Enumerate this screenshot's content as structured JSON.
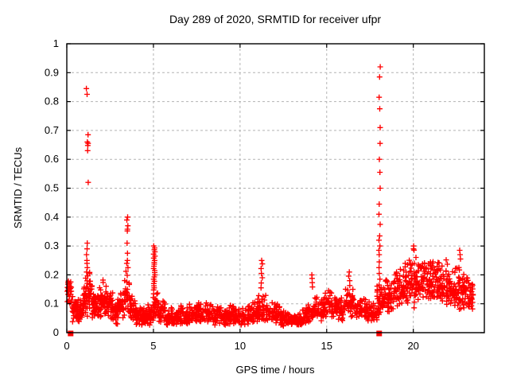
{
  "chart_data": {
    "type": "scatter",
    "title": "Day 289 of 2020, SRMTID for receiver ufpr",
    "xlabel": "GPS time / hours",
    "ylabel": "SRMTID / TECUs",
    "xlim": [
      0,
      24.1
    ],
    "ylim": [
      0,
      1
    ],
    "xticks": [
      0,
      5,
      10,
      15,
      20
    ],
    "yticks": [
      0,
      0.1,
      0.2,
      0.3,
      0.4,
      0.5,
      0.6,
      0.7,
      0.8,
      0.9,
      1
    ],
    "grid": "dashed",
    "legend": "none",
    "marker": "plus",
    "marker_size": 7,
    "marker_color": "#ff0000",
    "grid_color": "#b3b3b3",
    "border_color": "#000000",
    "background": "#ffffff",
    "square_markers": [
      {
        "x": 0.22,
        "y": 0.0
      },
      {
        "x": 18.03,
        "y": 0.0
      }
    ],
    "spike_columns": [
      {
        "x": 1.17,
        "ys": [
          0.845,
          0.825
        ]
      },
      {
        "x": 1.2,
        "ys": [
          0.685,
          0.66,
          0.655,
          0.648,
          0.63,
          0.52
        ]
      },
      {
        "x": 1.17,
        "ys": [
          0.31,
          0.29,
          0.27,
          0.25,
          0.24,
          0.225,
          0.21
        ]
      },
      {
        "x": 3.5,
        "ys": [
          0.4,
          0.39,
          0.37,
          0.358,
          0.352,
          0.31,
          0.275,
          0.25,
          0.24,
          0.225
        ]
      },
      {
        "x": 5.05,
        "ys": [
          0.3,
          0.293,
          0.287,
          0.28,
          0.272,
          0.265,
          0.258,
          0.25,
          0.243,
          0.237,
          0.23,
          0.222,
          0.215,
          0.208,
          0.2,
          0.193,
          0.185,
          0.178,
          0.17,
          0.162,
          0.155,
          0.148
        ]
      },
      {
        "x": 11.25,
        "ys": [
          0.25,
          0.238,
          0.222,
          0.205,
          0.19,
          0.172,
          0.155
        ]
      },
      {
        "x": 14.15,
        "ys": [
          0.2,
          0.188,
          0.173,
          0.158
        ]
      },
      {
        "x": 16.3,
        "ys": [
          0.21,
          0.196,
          0.18,
          0.163
        ]
      },
      {
        "x": 18.05,
        "ys": [
          0.92,
          0.885,
          0.815,
          0.775,
          0.71,
          0.655,
          0.6,
          0.555,
          0.5,
          0.445,
          0.41,
          0.375,
          0.335,
          0.32,
          0.3,
          0.285,
          0.27,
          0.245,
          0.225,
          0.205,
          0.185,
          0.165,
          0.148
        ]
      },
      {
        "x": 20.0,
        "ys": [
          0.3,
          0.29
        ]
      },
      {
        "x": 22.7,
        "ys": [
          0.285,
          0.27,
          0.255
        ]
      }
    ],
    "baseline_bins_format": [
      "x_start",
      "x_end",
      "count",
      "y_min",
      "y_mode",
      "y_max"
    ],
    "baseline_bins": [
      [
        0.02,
        0.3,
        28,
        0.09,
        0.14,
        0.21
      ],
      [
        0.3,
        0.6,
        30,
        0.03,
        0.07,
        0.13
      ],
      [
        0.6,
        0.9,
        34,
        0.03,
        0.06,
        0.12
      ],
      [
        0.9,
        1.15,
        30,
        0.05,
        0.1,
        0.2
      ],
      [
        1.15,
        1.45,
        34,
        0.05,
        0.12,
        0.23
      ],
      [
        1.45,
        1.75,
        30,
        0.04,
        0.08,
        0.15
      ],
      [
        1.75,
        2.05,
        30,
        0.04,
        0.09,
        0.18
      ],
      [
        2.05,
        2.35,
        30,
        0.05,
        0.1,
        0.19
      ],
      [
        2.35,
        2.65,
        30,
        0.04,
        0.08,
        0.15
      ],
      [
        2.65,
        2.95,
        30,
        0.03,
        0.06,
        0.12
      ],
      [
        2.95,
        3.25,
        30,
        0.04,
        0.09,
        0.17
      ],
      [
        3.25,
        3.65,
        36,
        0.04,
        0.11,
        0.22
      ],
      [
        3.65,
        3.95,
        30,
        0.03,
        0.07,
        0.13
      ],
      [
        3.95,
        4.25,
        30,
        0.02,
        0.05,
        0.1
      ],
      [
        4.25,
        4.6,
        34,
        0.02,
        0.045,
        0.09
      ],
      [
        4.6,
        4.9,
        30,
        0.02,
        0.05,
        0.1
      ],
      [
        4.9,
        5.3,
        36,
        0.04,
        0.08,
        0.15
      ],
      [
        5.3,
        5.7,
        34,
        0.03,
        0.06,
        0.11
      ],
      [
        5.7,
        6.5,
        64,
        0.02,
        0.05,
        0.09
      ],
      [
        6.5,
        7.5,
        80,
        0.02,
        0.055,
        0.1
      ],
      [
        7.5,
        8.5,
        80,
        0.03,
        0.06,
        0.11
      ],
      [
        8.5,
        9.5,
        80,
        0.02,
        0.055,
        0.1
      ],
      [
        9.5,
        10.5,
        80,
        0.02,
        0.05,
        0.1
      ],
      [
        10.5,
        11.0,
        40,
        0.03,
        0.06,
        0.11
      ],
      [
        11.0,
        11.6,
        46,
        0.03,
        0.07,
        0.14
      ],
      [
        11.6,
        12.3,
        52,
        0.03,
        0.06,
        0.11
      ],
      [
        12.3,
        13.0,
        54,
        0.02,
        0.045,
        0.08
      ],
      [
        13.0,
        13.6,
        44,
        0.02,
        0.04,
        0.07
      ],
      [
        13.6,
        14.2,
        44,
        0.03,
        0.06,
        0.1
      ],
      [
        14.2,
        14.8,
        44,
        0.04,
        0.08,
        0.13
      ],
      [
        14.8,
        15.3,
        40,
        0.05,
        0.09,
        0.15
      ],
      [
        15.3,
        16.0,
        50,
        0.04,
        0.08,
        0.13
      ],
      [
        16.0,
        16.6,
        46,
        0.05,
        0.1,
        0.17
      ],
      [
        16.6,
        17.3,
        50,
        0.04,
        0.07,
        0.13
      ],
      [
        17.3,
        17.9,
        44,
        0.03,
        0.06,
        0.12
      ],
      [
        17.9,
        18.3,
        40,
        0.05,
        0.1,
        0.18
      ],
      [
        18.3,
        18.9,
        50,
        0.06,
        0.11,
        0.2
      ],
      [
        18.9,
        19.5,
        56,
        0.08,
        0.13,
        0.24
      ],
      [
        19.5,
        20.1,
        56,
        0.08,
        0.15,
        0.3
      ],
      [
        20.1,
        20.7,
        56,
        0.09,
        0.16,
        0.27
      ],
      [
        20.7,
        21.3,
        56,
        0.09,
        0.16,
        0.26
      ],
      [
        21.3,
        21.9,
        56,
        0.08,
        0.15,
        0.26
      ],
      [
        21.9,
        22.5,
        56,
        0.08,
        0.14,
        0.25
      ],
      [
        22.5,
        23.1,
        50,
        0.07,
        0.13,
        0.24
      ],
      [
        23.1,
        23.45,
        30,
        0.06,
        0.12,
        0.22
      ]
    ]
  }
}
